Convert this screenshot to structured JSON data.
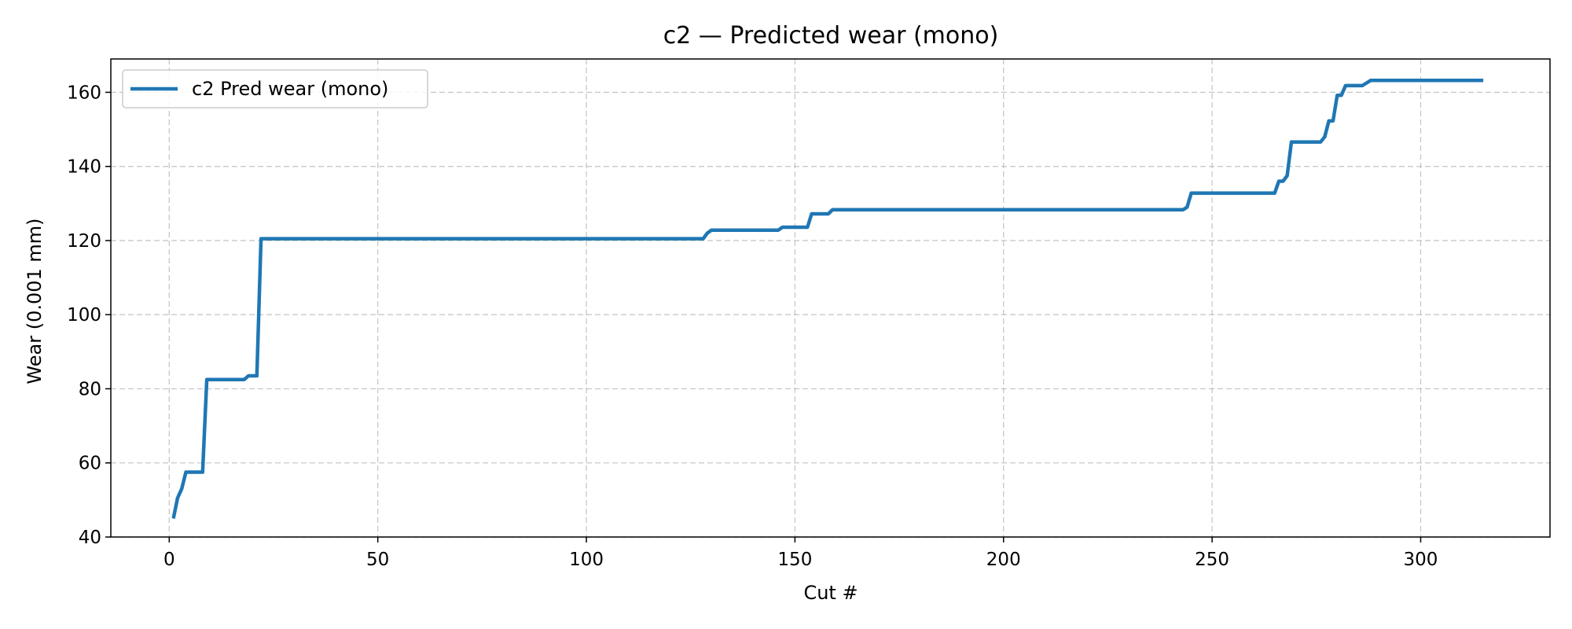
{
  "chart_data": {
    "type": "line",
    "title": "c2 — Predicted wear (mono)",
    "xlabel": "Cut #",
    "ylabel": "Wear (0.001 mm)",
    "xlim": [
      -14,
      331
    ],
    "ylim": [
      40,
      169
    ],
    "xticks": [
      0,
      50,
      100,
      150,
      200,
      250,
      300
    ],
    "yticks": [
      40,
      60,
      80,
      100,
      120,
      140,
      160
    ],
    "grid": true,
    "legend_position": "top-left",
    "series": [
      {
        "name": "c2 Pred wear (mono)",
        "color": "#1f77b4",
        "x": [
          1,
          2,
          3,
          4,
          8,
          9,
          18,
          19,
          21,
          22,
          128,
          129,
          130,
          146,
          147,
          153,
          154,
          158,
          159,
          243,
          244,
          245,
          265,
          266,
          267,
          268,
          269,
          276,
          277,
          278,
          279,
          280,
          281,
          282,
          286,
          287,
          288,
          315
        ],
        "y": [
          45,
          50.5,
          53,
          57.5,
          57.5,
          82.5,
          82.5,
          83.5,
          83.5,
          120.5,
          120.5,
          122,
          122.8,
          122.8,
          123.6,
          123.6,
          127.2,
          127.2,
          128.3,
          128.3,
          129,
          132.8,
          132.8,
          136,
          136,
          137.5,
          146.6,
          146.6,
          148,
          152.3,
          152.3,
          159.2,
          159.2,
          161.8,
          161.8,
          162.5,
          163.2,
          163.2
        ]
      }
    ]
  }
}
